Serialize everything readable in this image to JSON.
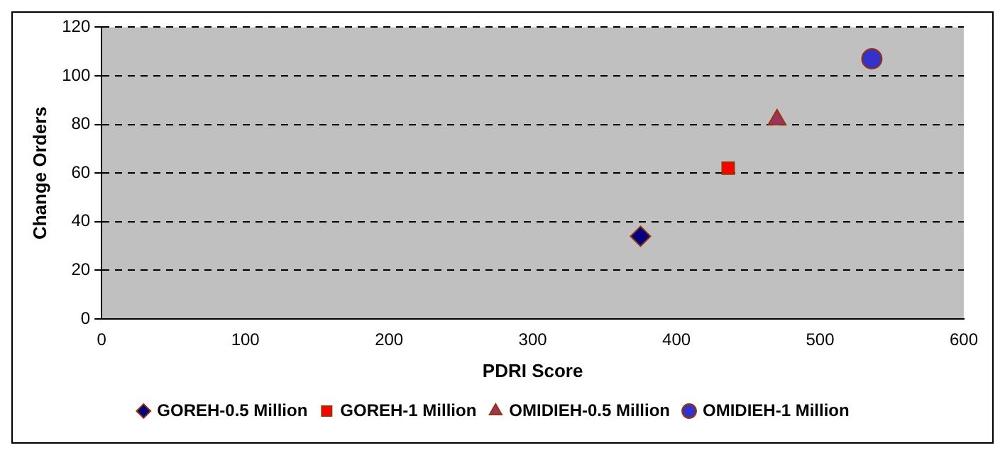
{
  "chart_data": {
    "type": "scatter",
    "xlabel": "PDRI Score",
    "ylabel": "Change Orders",
    "xlim": [
      0,
      600
    ],
    "xticks": [
      0,
      100,
      200,
      300,
      400,
      500,
      600
    ],
    "ylim": [
      0,
      120
    ],
    "yticks": [
      0,
      20,
      40,
      60,
      80,
      100,
      120
    ],
    "grid": "y",
    "legend": "bottom",
    "series": [
      {
        "name": "GOREH-0.5 Million",
        "color": "#000080",
        "marker": "diamond",
        "x": [
          375
        ],
        "values": [
          34
        ]
      },
      {
        "name": "GOREH-1 Million",
        "color": "#ff0000",
        "marker": "square",
        "x": [
          436
        ],
        "values": [
          62
        ]
      },
      {
        "name": "OMIDIEH-0.5 Million",
        "color": "#993366",
        "marker": "triangle",
        "x": [
          470
        ],
        "values": [
          82
        ]
      },
      {
        "name": "OMIDIEH-1 Million",
        "color": "#3333cc",
        "marker": "circle",
        "x": [
          536
        ],
        "values": [
          107
        ]
      }
    ]
  }
}
